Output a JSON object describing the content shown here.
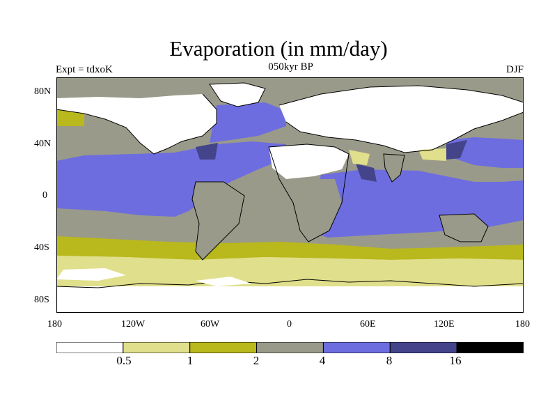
{
  "title": "Evaporation (in mm/day)",
  "subtitle": "050kyr BP",
  "left_label": "Expt = tdxoK",
  "right_label": "DJF",
  "y_ticks": [
    "80N",
    "40N",
    "0",
    "40S",
    "80S"
  ],
  "x_ticks": [
    "180",
    "120W",
    "60W",
    "0",
    "60E",
    "120E",
    "180"
  ],
  "colorbar": {
    "tick_labels": [
      "0.5",
      "1",
      "2",
      "4",
      "8",
      "16"
    ],
    "colors": [
      "#ffffff",
      "#e0df8c",
      "#b9b81c",
      "#9a9a8a",
      "#6d6de0",
      "#44448a",
      "#000000"
    ]
  },
  "colors": {
    "white": "#ffffff",
    "light_yellow": "#e0df8c",
    "olive": "#b9b81c",
    "gray": "#9a9a8a",
    "blue": "#6d6de0",
    "dark_blue": "#44448a",
    "coast": "#000000"
  }
}
